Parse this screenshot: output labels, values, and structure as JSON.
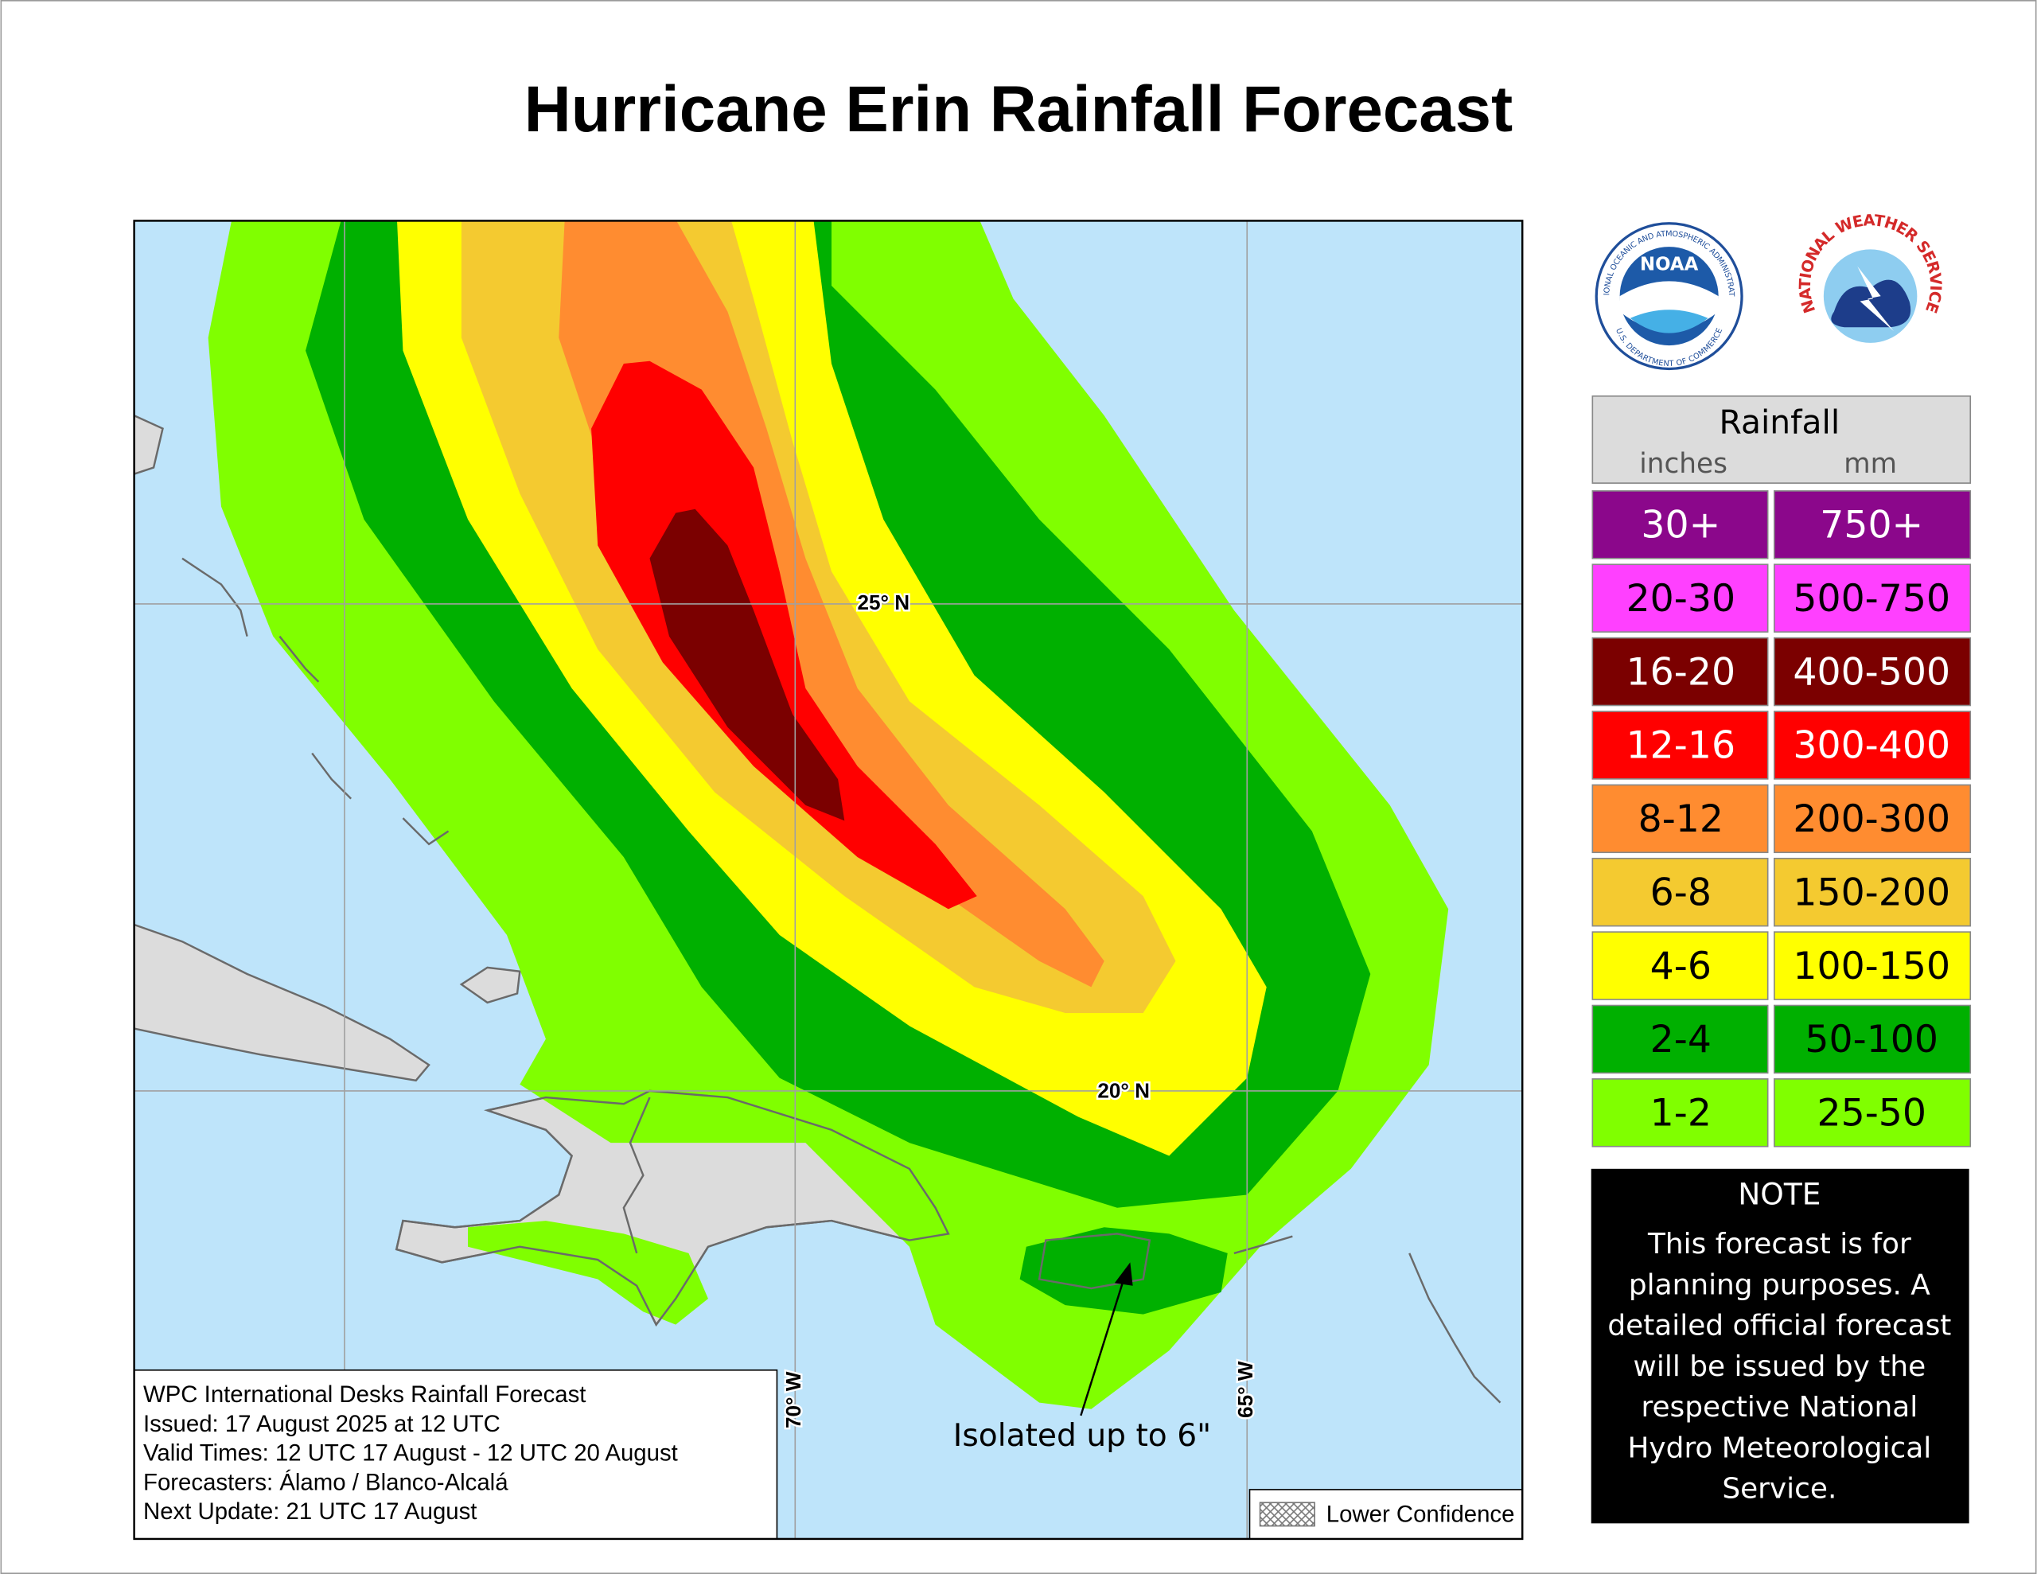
{
  "title": "Hurricane Erin Rainfall Forecast",
  "logos": {
    "noaa": "NOAA",
    "noaa_ring_top": "NATIONAL OCEANIC AND ATMOSPHERIC ADMINISTRATION",
    "noaa_ring_bottom": "U.S. DEPARTMENT OF COMMERCE",
    "nws_ring": "NATIONAL WEATHER SERVICE"
  },
  "legend": {
    "title": "Rainfall",
    "units": [
      "inches",
      "mm"
    ],
    "rows": [
      {
        "inches": "30+",
        "mm": "750+",
        "color": "#8b078b"
      },
      {
        "inches": "20-30",
        "mm": "500-750",
        "color": "#ff40ff"
      },
      {
        "inches": "16-20",
        "mm": "400-500",
        "color": "#7b0000"
      },
      {
        "inches": "12-16",
        "mm": "300-400",
        "color": "#ff0000"
      },
      {
        "inches": "8-12",
        "mm": "200-300",
        "color": "#ff8c30"
      },
      {
        "inches": "6-8",
        "mm": "150-200",
        "color": "#f4ca30"
      },
      {
        "inches": "4-6",
        "mm": "100-150",
        "color": "#ffff00"
      },
      {
        "inches": "2-4",
        "mm": "50-100",
        "color": "#00b000"
      },
      {
        "inches": "1-2",
        "mm": "25-50",
        "color": "#80ff00"
      }
    ]
  },
  "note": {
    "title": "NOTE",
    "lines": [
      "This forecast is for",
      "planning purposes. A",
      "detailed official forecast",
      "will be issued by the",
      "respective National",
      "Hydro Meteorological",
      "Service."
    ]
  },
  "map": {
    "grid_labels": [
      "25° N",
      "20° N",
      "70° W",
      "65° W"
    ],
    "annotation": "Isolated up to 6\"",
    "info": [
      "WPC International Desks Rainfall Forecast",
      "Issued: 17 August 2025 at 12 UTC",
      "Valid Times: 12 UTC 17 August - 12 UTC 20 August",
      "Forecasters: Álamo / Blanco-Alcalá",
      "Next Update: 21 UTC 17 August"
    ],
    "lower_confidence": "Lower Confidence"
  }
}
